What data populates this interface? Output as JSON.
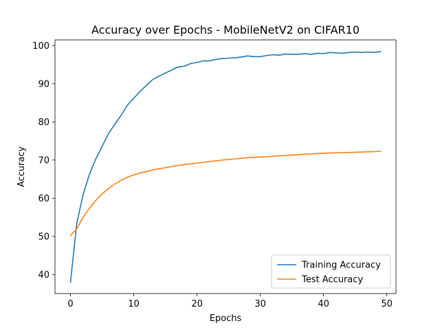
{
  "chart_data": {
    "type": "line",
    "title": "Accuracy over Epochs - MobileNetV2 on CIFAR10",
    "xlabel": "Epochs",
    "ylabel": "Accuracy",
    "xlim": [
      -2.45,
      51.45
    ],
    "ylim": [
      35,
      101.5
    ],
    "xticks": [
      0,
      10,
      20,
      30,
      40,
      50
    ],
    "yticks": [
      40,
      50,
      60,
      70,
      80,
      90,
      100
    ],
    "grid": false,
    "legend_position": "lower-right",
    "x": [
      0,
      1,
      2,
      3,
      4,
      5,
      6,
      7,
      8,
      9,
      10,
      11,
      12,
      13,
      14,
      15,
      16,
      17,
      18,
      19,
      20,
      21,
      22,
      23,
      24,
      25,
      26,
      27,
      28,
      29,
      30,
      31,
      32,
      33,
      34,
      35,
      36,
      37,
      38,
      39,
      40,
      41,
      42,
      43,
      44,
      45,
      46,
      47,
      48,
      49
    ],
    "series": [
      {
        "name": "Training Accuracy",
        "color": "#1f77b4",
        "values": [
          38.0,
          53.5,
          61.0,
          66.3,
          70.3,
          73.6,
          76.9,
          79.4,
          81.7,
          84.4,
          86.2,
          88.0,
          89.6,
          91.1,
          92.0,
          92.8,
          93.6,
          94.4,
          94.6,
          95.3,
          95.6,
          96.0,
          96.0,
          96.4,
          96.6,
          96.7,
          96.8,
          97.0,
          97.3,
          97.1,
          97.1,
          97.4,
          97.6,
          97.5,
          97.8,
          97.7,
          97.7,
          97.9,
          97.7,
          98.0,
          97.9,
          98.2,
          98.1,
          98.0,
          98.2,
          98.3,
          98.2,
          98.3,
          98.2,
          98.4
        ]
      },
      {
        "name": "Test Accuracy",
        "color": "#ff7f0e",
        "values": [
          50.2,
          52.0,
          55.0,
          57.4,
          59.4,
          61.1,
          62.5,
          63.7,
          64.7,
          65.5,
          66.1,
          66.6,
          67.0,
          67.4,
          67.7,
          68.0,
          68.3,
          68.6,
          68.8,
          69.0,
          69.2,
          69.4,
          69.6,
          69.8,
          70.0,
          70.15,
          70.3,
          70.45,
          70.6,
          70.7,
          70.8,
          70.9,
          71.0,
          71.1,
          71.2,
          71.3,
          71.4,
          71.5,
          71.6,
          71.7,
          71.8,
          71.85,
          71.9,
          71.95,
          72.0,
          72.05,
          72.1,
          72.15,
          72.2,
          72.3
        ]
      }
    ]
  }
}
